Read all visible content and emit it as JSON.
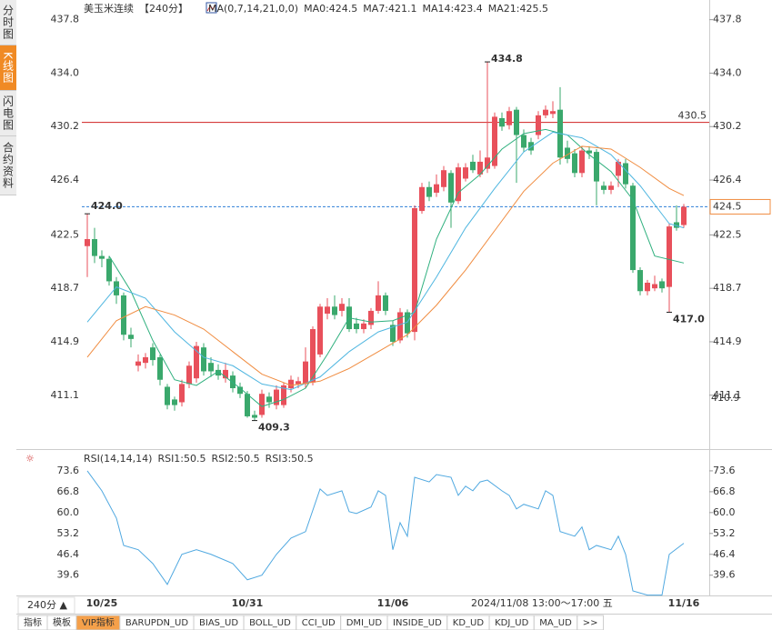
{
  "sidebar": [
    {
      "label": "分时图",
      "active": false
    },
    {
      "label": "K线图",
      "active": true
    },
    {
      "label": "闪电图",
      "active": false
    },
    {
      "label": "合约资料",
      "active": false
    }
  ],
  "period_button": "240分 ▲",
  "crosshair_time": "2024/11/08 13:00～17:00 五",
  "toolbar": [
    {
      "label": "指标",
      "active": false
    },
    {
      "label": "模板",
      "active": false
    },
    {
      "label": "VIP指标",
      "active": true
    },
    {
      "label": "BARUPDN_UD",
      "active": false
    },
    {
      "label": "BIAS_UD",
      "active": false
    },
    {
      "label": "BOLL_UD",
      "active": false
    },
    {
      "label": "CCI_UD",
      "active": false
    },
    {
      "label": "DMI_UD",
      "active": false
    },
    {
      "label": "INSIDE_UD",
      "active": false
    },
    {
      "label": "KD_UD",
      "active": false
    },
    {
      "label": "KDJ_UD",
      "active": false
    },
    {
      "label": "MA_UD",
      "active": false
    },
    {
      "label": ">>",
      "active": false
    }
  ],
  "chart_data": [
    {
      "type": "candlestick",
      "title": "美玉米连续",
      "period": "【240分】",
      "indicator": "MA(0,7,14,21,0,0)",
      "up_color": "#e8505b",
      "down_color": "#3aa86c",
      "ylim": [
        407.4,
        439.2
      ],
      "yticks": [
        {
          "value": 437.8,
          "label": "437.8"
        },
        {
          "value": 434,
          "label": "434.0"
        },
        {
          "value": 430.2,
          "label": "430.2"
        },
        {
          "value": 426.4,
          "label": "426.4"
        },
        {
          "value": 422.5,
          "label": "422.5"
        },
        {
          "value": 418.7,
          "label": "418.7"
        },
        {
          "value": 414.9,
          "label": "414.9"
        },
        {
          "value": 411.1,
          "label": "411.1"
        }
      ],
      "categories": [
        null,
        null,
        "10/25",
        null,
        null,
        null,
        null,
        null,
        null,
        null,
        null,
        null,
        null,
        null,
        null,
        null,
        null,
        null,
        null,
        null,
        null,
        null,
        "10/31",
        null,
        null,
        null,
        null,
        null,
        null,
        null,
        null,
        null,
        null,
        null,
        null,
        null,
        null,
        null,
        null,
        null,
        null,
        null,
        "11/06",
        null,
        null,
        null,
        null,
        null,
        null,
        null,
        null,
        null,
        null,
        null,
        null,
        null,
        null,
        null,
        null,
        null,
        null,
        null,
        null,
        null,
        null,
        null,
        null,
        null,
        null,
        null,
        null,
        null,
        null,
        null,
        null,
        null,
        null,
        null,
        null,
        null,
        null,
        null,
        "11/16"
      ],
      "candles": [
        [
          421.7,
          424.0,
          419.5,
          422.2
        ],
        [
          422.2,
          423.0,
          420.5,
          421.0
        ],
        [
          421.0,
          421.4,
          420.2,
          420.8
        ],
        [
          420.8,
          421.0,
          418.9,
          419.2
        ],
        [
          419.2,
          419.5,
          417.6,
          418.2
        ],
        [
          418.2,
          418.4,
          415.0,
          415.4
        ],
        [
          415.4,
          415.9,
          414.5,
          415.1
        ],
        [
          413.2,
          414.0,
          412.8,
          413.5
        ],
        [
          413.4,
          414.1,
          413.0,
          413.8
        ],
        [
          414.5,
          414.8,
          413.2,
          413.6
        ],
        [
          413.8,
          414.0,
          411.8,
          412.2
        ],
        [
          411.7,
          411.9,
          410.1,
          410.4
        ],
        [
          410.8,
          411.0,
          410.0,
          410.4
        ],
        [
          410.6,
          412.2,
          410.3,
          411.9
        ],
        [
          411.9,
          413.5,
          411.6,
          413.2
        ],
        [
          412.3,
          414.9,
          412.0,
          414.6
        ],
        [
          414.5,
          414.8,
          412.5,
          412.8
        ],
        [
          413.4,
          413.8,
          412.4,
          412.8
        ],
        [
          412.9,
          413.3,
          412.2,
          412.5
        ],
        [
          412.3,
          413.4,
          412.0,
          412.9
        ],
        [
          412.5,
          412.8,
          411.3,
          411.6
        ],
        [
          411.7,
          412.0,
          410.9,
          411.2
        ],
        [
          411.2,
          411.4,
          409.5,
          409.6
        ],
        [
          409.7,
          410.0,
          409.3,
          409.5
        ],
        [
          409.7,
          411.5,
          409.5,
          411.2
        ],
        [
          411.0,
          411.3,
          410.2,
          410.6
        ],
        [
          410.4,
          411.8,
          410.1,
          411.5
        ],
        [
          410.4,
          412.0,
          410.2,
          411.8
        ],
        [
          411.6,
          412.5,
          411.3,
          412.2
        ],
        [
          411.9,
          412.4,
          411.6,
          412.1
        ],
        [
          411.9,
          414.5,
          411.6,
          413.5
        ],
        [
          412.0,
          416.0,
          411.8,
          415.8
        ],
        [
          414.0,
          417.6,
          413.8,
          417.4
        ],
        [
          416.9,
          418.0,
          416.5,
          417.4
        ],
        [
          417.4,
          418.2,
          416.5,
          416.8
        ],
        [
          417.1,
          418.0,
          416.7,
          417.6
        ],
        [
          417.4,
          418.0,
          415.6,
          415.8
        ],
        [
          416.2,
          416.6,
          415.5,
          415.8
        ],
        [
          415.8,
          416.5,
          415.5,
          416.2
        ],
        [
          416.1,
          417.3,
          415.8,
          417.1
        ],
        [
          417.1,
          419.2,
          416.9,
          418.2
        ],
        [
          418.2,
          418.4,
          416.8,
          417.1
        ],
        [
          416.1,
          416.4,
          414.6,
          414.9
        ],
        [
          415.0,
          417.3,
          414.8,
          417.0
        ],
        [
          417.0,
          417.2,
          415.2,
          415.5
        ],
        [
          415.6,
          424.6,
          415.0,
          424.4
        ],
        [
          424.2,
          426.2,
          424.0,
          425.9
        ],
        [
          425.9,
          426.3,
          424.9,
          425.2
        ],
        [
          425.5,
          426.8,
          425.2,
          426.1
        ],
        [
          425.9,
          427.4,
          425.6,
          427.1
        ],
        [
          426.9,
          427.1,
          423.0,
          424.8
        ],
        [
          424.9,
          427.6,
          424.7,
          427.3
        ],
        [
          426.5,
          427.6,
          426.3,
          427.3
        ],
        [
          427.7,
          428.2,
          426.9,
          427.1
        ],
        [
          426.8,
          428.5,
          426.6,
          427.7
        ],
        [
          427.2,
          434.8,
          426.9,
          428.0
        ],
        [
          427.4,
          431.2,
          427.2,
          430.9
        ],
        [
          430.8,
          431.2,
          429.9,
          430.2
        ],
        [
          430.3,
          431.6,
          430.0,
          431.3
        ],
        [
          431.4,
          431.6,
          426.2,
          429.6
        ],
        [
          429.6,
          430.0,
          428.4,
          428.7
        ],
        [
          429.1,
          429.4,
          428.2,
          428.5
        ],
        [
          429.6,
          431.3,
          429.3,
          431.0
        ],
        [
          431.0,
          431.7,
          430.8,
          431.4
        ],
        [
          431.1,
          432.0,
          430.8,
          431.3
        ],
        [
          431.4,
          433.0,
          427.5,
          428.0
        ],
        [
          428.7,
          429.2,
          427.6,
          427.9
        ],
        [
          428.3,
          428.6,
          426.6,
          426.9
        ],
        [
          426.9,
          428.8,
          426.6,
          428.5
        ],
        [
          428.5,
          428.8,
          427.9,
          428.3
        ],
        [
          428.4,
          428.6,
          424.6,
          426.3
        ],
        [
          426.0,
          426.3,
          425.4,
          425.7
        ],
        [
          425.7,
          426.3,
          425.4,
          426.0
        ],
        [
          426.7,
          427.9,
          425.9,
          427.7
        ],
        [
          427.6,
          427.9,
          425.8,
          426.1
        ],
        [
          426.0,
          426.2,
          419.8,
          420.0
        ],
        [
          420.0,
          420.2,
          418.2,
          418.5
        ],
        [
          418.5,
          419.3,
          418.2,
          419.1
        ],
        [
          418.7,
          419.6,
          418.5,
          419.0
        ],
        [
          419.2,
          419.4,
          418.4,
          418.7
        ],
        [
          418.8,
          423.3,
          417.0,
          423.1
        ],
        [
          423.4,
          424.6,
          422.8,
          423.0
        ],
        [
          423.2,
          424.7,
          423.0,
          424.5
        ]
      ],
      "series": [
        {
          "name": "MA0:424.5",
          "color": "#2f7fd8"
        },
        {
          "name": "MA7:421.1",
          "color": "#2fb07e",
          "x": [
            3,
            6,
            9,
            12,
            15,
            18,
            21,
            24,
            27,
            30,
            33,
            36,
            39,
            42,
            45,
            48,
            51,
            54,
            57,
            60,
            63,
            66,
            69,
            72,
            75,
            78,
            82
          ],
          "values": [
            421.0,
            418.5,
            415.0,
            412.2,
            411.8,
            412.8,
            411.6,
            410.3,
            410.8,
            411.6,
            414.0,
            416.6,
            416.3,
            416.4,
            417.0,
            422.2,
            425.5,
            426.8,
            428.6,
            429.7,
            430.0,
            429.6,
            428.2,
            427.0,
            425.0,
            421.0,
            420.5
          ]
        },
        {
          "name": "MA14:423.4",
          "color": "#4fb6e0",
          "x": [
            0,
            4,
            8,
            12,
            16,
            20,
            24,
            28,
            32,
            36,
            40,
            44,
            48,
            52,
            56,
            60,
            64,
            68,
            72,
            76,
            80,
            82
          ],
          "values": [
            416.3,
            418.8,
            418.0,
            415.6,
            413.8,
            413.2,
            411.9,
            411.5,
            412.4,
            414.2,
            415.6,
            416.3,
            419.5,
            423.0,
            425.8,
            428.4,
            429.8,
            429.4,
            428.2,
            426.0,
            423.3,
            423.0
          ]
        },
        {
          "name": "MA21:425.5",
          "color": "#f08c40",
          "x": [
            0,
            4,
            8,
            12,
            16,
            20,
            24,
            28,
            32,
            36,
            40,
            44,
            48,
            52,
            56,
            60,
            64,
            68,
            72,
            76,
            80,
            82
          ],
          "values": [
            413.8,
            416.4,
            417.4,
            416.8,
            415.8,
            414.2,
            412.6,
            411.8,
            412.1,
            413.0,
            414.2,
            415.4,
            417.5,
            420.0,
            422.8,
            425.6,
            427.6,
            428.8,
            428.6,
            427.3,
            425.8,
            425.3
          ]
        }
      ],
      "hlines": [
        {
          "value": 430.5,
          "color": "#d02020",
          "style": "solid"
        },
        {
          "value": 424.5,
          "color": "#2f7fd8",
          "style": "dashed"
        }
      ],
      "annotations": [
        {
          "candle": 0,
          "value": 424,
          "label": "424.0",
          "color": "#e8505b"
        },
        {
          "candle": 55,
          "value": 434.8,
          "color": "#e8505b"
        },
        {
          "candle": 23,
          "value": 409.3,
          "color": "#3aa86c"
        },
        {
          "candle": 80,
          "value": 417,
          "label": "417.0",
          "color": "#3aa86c"
        }
      ],
      "axis_marks": [
        {
          "value": 410.9,
          "color": "#f08c40"
        }
      ]
    },
    {
      "type": "line",
      "title": "RSI(14,14,14)",
      "ylim": [
        33.0,
        79.8
      ],
      "yticks": [
        73.6,
        66.8,
        {
          "value": 60,
          "label": "60.0"
        },
        53.2,
        46.4,
        39.6
      ],
      "series": [
        {
          "name": "RSI1:50.5",
          "color": "#4fa8e0",
          "x": [
            0,
            2,
            4,
            5,
            7,
            9,
            11,
            13,
            15,
            17,
            20,
            22,
            24,
            26,
            28,
            30,
            32,
            33,
            35,
            36,
            37,
            39,
            40,
            41,
            42,
            43,
            44,
            45,
            47,
            48,
            50,
            51,
            52,
            53,
            54,
            55,
            57,
            58,
            59,
            60,
            62,
            63,
            64,
            65,
            67,
            68,
            69,
            70,
            72,
            73,
            74,
            75,
            77,
            79,
            80,
            82
          ],
          "values": [
            73.6,
            67.1,
            58.2,
            49.3,
            47.9,
            43.4,
            36.6,
            46.4,
            47.9,
            46.4,
            43.4,
            38.1,
            39.6,
            46.4,
            51.7,
            53.8,
            67.7,
            65.6,
            67.1,
            60.3,
            59.7,
            61.8,
            67.1,
            65.6,
            47.9,
            56.7,
            52.3,
            71.5,
            70.0,
            72.4,
            71.5,
            65.6,
            68.6,
            67.1,
            70.0,
            70.6,
            67.1,
            65.6,
            61.2,
            62.7,
            61.2,
            67.1,
            65.6,
            53.8,
            52.3,
            55.3,
            47.9,
            49.3,
            47.9,
            52.3,
            46.4,
            34.5,
            33.1,
            33.1,
            46.4,
            50.0
          ]
        },
        {
          "name": "RSI2:50.5",
          "color": "#3aa86c"
        },
        {
          "name": "RSI3:50.5",
          "color": "#5cc0d0"
        }
      ]
    }
  ]
}
